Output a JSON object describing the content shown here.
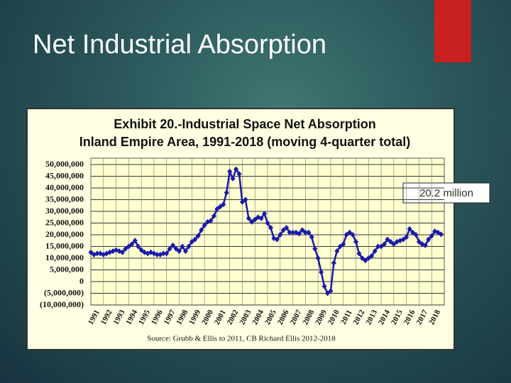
{
  "heading": "Net Industrial Absorption",
  "chart_data": {
    "type": "line",
    "title": "Exhibit 20.-Industrial Space Net Absorption",
    "subtitle": "Inland Empire Area, 1991-2018 (moving 4-quarter total)",
    "source": "Source:  Grubb & Ellis to 2011, CB Richard Ellis 2012-2018",
    "annotation": "20.2 million",
    "x": [
      1991,
      1991.25,
      1991.5,
      1991.75,
      1992,
      1992.25,
      1992.5,
      1992.75,
      1993,
      1993.25,
      1993.5,
      1993.75,
      1994,
      1994.25,
      1994.5,
      1994.75,
      1995,
      1995.25,
      1995.5,
      1995.75,
      1996,
      1996.25,
      1996.5,
      1996.75,
      1997,
      1997.25,
      1997.5,
      1997.75,
      1998,
      1998.25,
      1998.5,
      1998.75,
      1999,
      1999.25,
      1999.5,
      1999.75,
      2000,
      2000.25,
      2000.5,
      2000.75,
      2001,
      2001.25,
      2001.5,
      2001.75,
      2002,
      2002.25,
      2002.5,
      2002.75,
      2003,
      2003.25,
      2003.5,
      2003.75,
      2004,
      2004.25,
      2004.5,
      2004.75,
      2005,
      2005.25,
      2005.5,
      2005.75,
      2006,
      2006.25,
      2006.5,
      2006.75,
      2007,
      2007.25,
      2007.5,
      2007.75,
      2008,
      2008.25,
      2008.5,
      2008.75,
      2009,
      2009.25,
      2009.5,
      2009.75,
      2010,
      2010.25,
      2010.5,
      2010.75,
      2011,
      2011.25,
      2011.5,
      2011.75,
      2012,
      2012.25,
      2012.5,
      2012.75,
      2013,
      2013.25,
      2013.5,
      2013.75,
      2014,
      2014.25,
      2014.5,
      2014.75,
      2015,
      2015.25,
      2015.5,
      2015.75,
      2016,
      2016.25,
      2016.5,
      2016.75,
      2017,
      2017.25,
      2017.5,
      2017.75,
      2018,
      2018.25,
      2018.5,
      2018.75
    ],
    "series": [
      {
        "color": "#1a1aa8",
        "values": [
          12500000,
          11500000,
          12000000,
          12000000,
          11500000,
          12000000,
          12500000,
          13000000,
          13500000,
          13000000,
          12500000,
          14000000,
          15000000,
          16000000,
          17500000,
          15000000,
          13500000,
          12500000,
          12000000,
          12500000,
          12000000,
          11500000,
          11500000,
          12000000,
          12000000,
          14000000,
          15500000,
          14000000,
          13000000,
          15000000,
          13000000,
          15000000,
          17000000,
          18000000,
          19500000,
          22000000,
          24000000,
          25500000,
          26000000,
          28000000,
          31000000,
          32000000,
          33000000,
          38000000,
          47000000,
          44000000,
          48000000,
          46000000,
          34000000,
          35000000,
          27000000,
          25500000,
          26500000,
          27500000,
          27000000,
          29000000,
          25000000,
          23000000,
          18500000,
          18000000,
          20000000,
          22000000,
          23000000,
          21000000,
          21000000,
          21000000,
          20500000,
          22000000,
          21000000,
          21000000,
          19000000,
          14000000,
          10000000,
          4000000,
          -2000000,
          -5000000,
          -4000000,
          8000000,
          13000000,
          15000000,
          16000000,
          20000000,
          21000000,
          20000000,
          17000000,
          12000000,
          10000000,
          9000000,
          10000000,
          11000000,
          13000000,
          15000000,
          15000000,
          16000000,
          18000000,
          17000000,
          16000000,
          17000000,
          17500000,
          18000000,
          19000000,
          22500000,
          21000000,
          20000000,
          17000000,
          16000000,
          15500000,
          18000000,
          19500000,
          21500000,
          21000000,
          20200000
        ]
      }
    ],
    "xlim": [
      1991,
      2019
    ],
    "xticks": [
      1991,
      1992,
      1993,
      1994,
      1995,
      1996,
      1997,
      1998,
      1999,
      2000,
      2001,
      2002,
      2003,
      2004,
      2005,
      2006,
      2007,
      2008,
      2009,
      2010,
      2011,
      2012,
      2013,
      2014,
      2015,
      2016,
      2017,
      2018
    ],
    "ylim": [
      -10000000,
      50000000
    ],
    "yticks": [
      {
        "value": -10000000,
        "label": "(10,000,000)"
      },
      {
        "value": -5000000,
        "label": "(5,000,000)"
      },
      0,
      {
        "value": 5000000,
        "label": "5,000,000"
      },
      {
        "value": 10000000,
        "label": "10,000,000"
      },
      {
        "value": 15000000,
        "label": "15,000,000"
      },
      {
        "value": 20000000,
        "label": "20,000,000"
      },
      {
        "value": 25000000,
        "label": "25,000,000"
      },
      {
        "value": 30000000,
        "label": "30,000,000"
      },
      {
        "value": 35000000,
        "label": "35,000,000"
      },
      {
        "value": 40000000,
        "label": "40,000,000"
      },
      {
        "value": 45000000,
        "label": "45,000,000"
      },
      {
        "value": 50000000,
        "label": "50,000,000"
      }
    ],
    "grid": true
  }
}
